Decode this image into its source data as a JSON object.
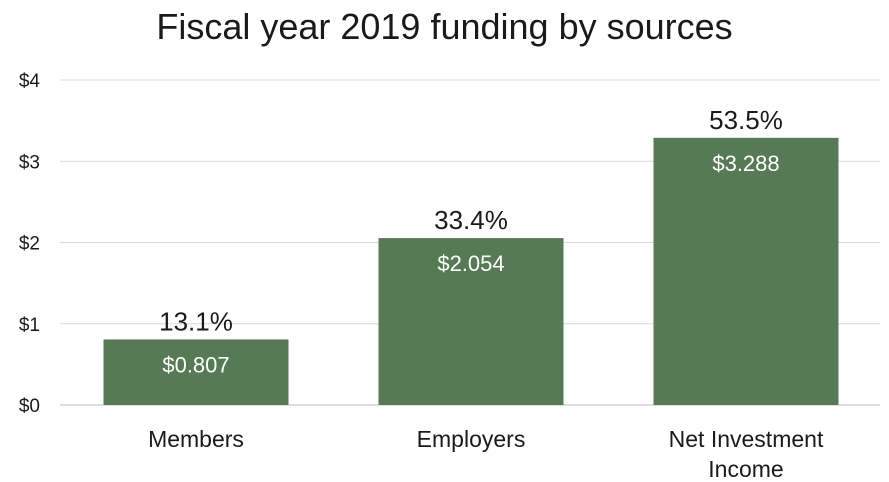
{
  "chart_data": {
    "type": "bar",
    "title": "Fiscal year 2019 funding by sources",
    "categories": [
      "Members",
      "Employers",
      "Net Investment Income"
    ],
    "category_lines": [
      [
        "Members"
      ],
      [
        "Employers"
      ],
      [
        "Net Investment",
        "Income"
      ]
    ],
    "values": [
      0.807,
      2.054,
      3.288
    ],
    "value_labels": [
      "$0.807",
      "$2.054",
      "$3.288"
    ],
    "percent_labels": [
      "13.1%",
      "33.4%",
      "53.5%"
    ],
    "ylim": [
      0,
      4
    ],
    "yticks": [
      0,
      1,
      2,
      3,
      4
    ],
    "ytick_labels": [
      "$0",
      "$1",
      "$2",
      "$3",
      "$4"
    ],
    "xlabel": "",
    "ylabel": "",
    "grid": true,
    "legend": "none",
    "colors": {
      "bar": "#557a54",
      "grid": "#d9d9d9",
      "text": "#1a1a1a",
      "bar_label": "#ffffff"
    }
  }
}
